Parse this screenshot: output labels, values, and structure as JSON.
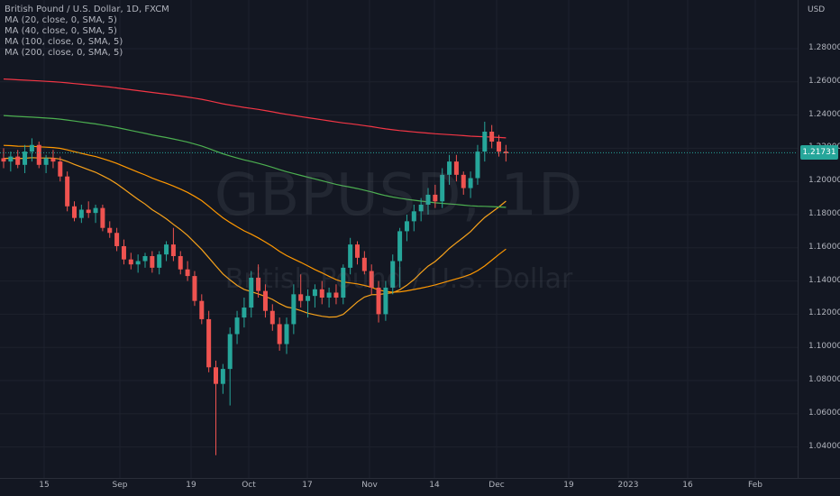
{
  "chart_data": {
    "type": "candlestick",
    "title": "British Pound / U.S. Dollar, 1D, FXCM",
    "symbol_watermark": "GBPUSD, 1D",
    "name_watermark": "British Pound / U.S. Dollar",
    "indicators": [
      {
        "label": "MA (20, close, 0, SMA, 5)",
        "color": "#f7a21b"
      },
      {
        "label": "MA (40, close, 0, SMA, 5)",
        "color": "#ff9800"
      },
      {
        "label": "MA (100, close, 0, SMA, 5)",
        "color": "#4caf50"
      },
      {
        "label": "MA (200, close, 0, SMA, 5)",
        "color": "#f23645"
      }
    ],
    "currency": "USD",
    "last_price": "1.21731",
    "ylim": [
      1.03,
      1.3
    ],
    "y_ticks": [
      "1.28000",
      "1.26000",
      "1.24000",
      "1.22000",
      "1.20000",
      "1.18000",
      "1.16000",
      "1.14000",
      "1.12000",
      "1.10000",
      "1.08000",
      "1.06000",
      "1.04000"
    ],
    "x_ticks": [
      "15",
      "Sep",
      "19",
      "Oct",
      "17",
      "Nov",
      "14",
      "Dec",
      "19",
      "2023",
      "16",
      "Feb"
    ],
    "colors": {
      "up": "#26a69a",
      "down": "#ef5350",
      "background": "#131722"
    },
    "candles": [
      [
        1.214,
        1.22,
        1.208,
        1.212
      ],
      [
        1.212,
        1.218,
        1.206,
        1.215
      ],
      [
        1.215,
        1.219,
        1.208,
        1.21
      ],
      [
        1.21,
        1.222,
        1.205,
        1.218
      ],
      [
        1.218,
        1.226,
        1.212,
        1.222
      ],
      [
        1.222,
        1.224,
        1.208,
        1.21
      ],
      [
        1.21,
        1.216,
        1.205,
        1.214
      ],
      [
        1.214,
        1.219,
        1.208,
        1.212
      ],
      [
        1.212,
        1.215,
        1.2,
        1.203
      ],
      [
        1.203,
        1.206,
        1.182,
        1.185
      ],
      [
        1.185,
        1.188,
        1.176,
        1.178
      ],
      [
        1.178,
        1.186,
        1.175,
        1.183
      ],
      [
        1.183,
        1.188,
        1.178,
        1.181
      ],
      [
        1.181,
        1.186,
        1.175,
        1.184
      ],
      [
        1.184,
        1.186,
        1.17,
        1.172
      ],
      [
        1.172,
        1.176,
        1.166,
        1.169
      ],
      [
        1.169,
        1.172,
        1.158,
        1.161
      ],
      [
        1.161,
        1.165,
        1.15,
        1.153
      ],
      [
        1.153,
        1.157,
        1.147,
        1.15
      ],
      [
        1.15,
        1.156,
        1.145,
        1.152
      ],
      [
        1.152,
        1.157,
        1.148,
        1.155
      ],
      [
        1.155,
        1.158,
        1.145,
        1.148
      ],
      [
        1.148,
        1.158,
        1.144,
        1.156
      ],
      [
        1.156,
        1.164,
        1.152,
        1.162
      ],
      [
        1.162,
        1.172,
        1.152,
        1.155
      ],
      [
        1.155,
        1.158,
        1.144,
        1.147
      ],
      [
        1.147,
        1.152,
        1.14,
        1.143
      ],
      [
        1.143,
        1.146,
        1.125,
        1.128
      ],
      [
        1.128,
        1.132,
        1.114,
        1.117
      ],
      [
        1.117,
        1.122,
        1.085,
        1.088
      ],
      [
        1.088,
        1.092,
        1.035,
        1.078
      ],
      [
        1.078,
        1.09,
        1.072,
        1.087
      ],
      [
        1.087,
        1.112,
        1.065,
        1.108
      ],
      [
        1.108,
        1.122,
        1.102,
        1.118
      ],
      [
        1.118,
        1.13,
        1.112,
        1.124
      ],
      [
        1.124,
        1.146,
        1.118,
        1.142
      ],
      [
        1.142,
        1.15,
        1.13,
        1.134
      ],
      [
        1.134,
        1.138,
        1.118,
        1.122
      ],
      [
        1.122,
        1.126,
        1.11,
        1.114
      ],
      [
        1.114,
        1.118,
        1.098,
        1.102
      ],
      [
        1.102,
        1.118,
        1.096,
        1.114
      ],
      [
        1.114,
        1.138,
        1.108,
        1.132
      ],
      [
        1.132,
        1.144,
        1.124,
        1.128
      ],
      [
        1.128,
        1.135,
        1.118,
        1.131
      ],
      [
        1.131,
        1.138,
        1.124,
        1.135
      ],
      [
        1.135,
        1.14,
        1.126,
        1.13
      ],
      [
        1.13,
        1.136,
        1.124,
        1.133
      ],
      [
        1.133,
        1.138,
        1.126,
        1.13
      ],
      [
        1.13,
        1.15,
        1.126,
        1.148
      ],
      [
        1.148,
        1.166,
        1.144,
        1.162
      ],
      [
        1.162,
        1.164,
        1.15,
        1.154
      ],
      [
        1.154,
        1.158,
        1.144,
        1.146
      ],
      [
        1.146,
        1.15,
        1.132,
        1.136
      ],
      [
        1.136,
        1.14,
        1.115,
        1.12
      ],
      [
        1.12,
        1.14,
        1.116,
        1.136
      ],
      [
        1.136,
        1.156,
        1.132,
        1.152
      ],
      [
        1.152,
        1.172,
        1.136,
        1.17
      ],
      [
        1.17,
        1.18,
        1.164,
        1.176
      ],
      [
        1.176,
        1.186,
        1.17,
        1.182
      ],
      [
        1.182,
        1.19,
        1.176,
        1.186
      ],
      [
        1.186,
        1.196,
        1.18,
        1.192
      ],
      [
        1.192,
        1.198,
        1.184,
        1.188
      ],
      [
        1.188,
        1.208,
        1.184,
        1.204
      ],
      [
        1.204,
        1.216,
        1.198,
        1.212
      ],
      [
        1.212,
        1.216,
        1.2,
        1.204
      ],
      [
        1.204,
        1.206,
        1.192,
        1.196
      ],
      [
        1.196,
        1.206,
        1.19,
        1.202
      ],
      [
        1.202,
        1.222,
        1.198,
        1.218
      ],
      [
        1.218,
        1.236,
        1.212,
        1.23
      ],
      [
        1.23,
        1.234,
        1.22,
        1.224
      ],
      [
        1.224,
        1.228,
        1.215,
        1.218
      ],
      [
        1.218,
        1.222,
        1.212,
        1.217
      ]
    ]
  }
}
